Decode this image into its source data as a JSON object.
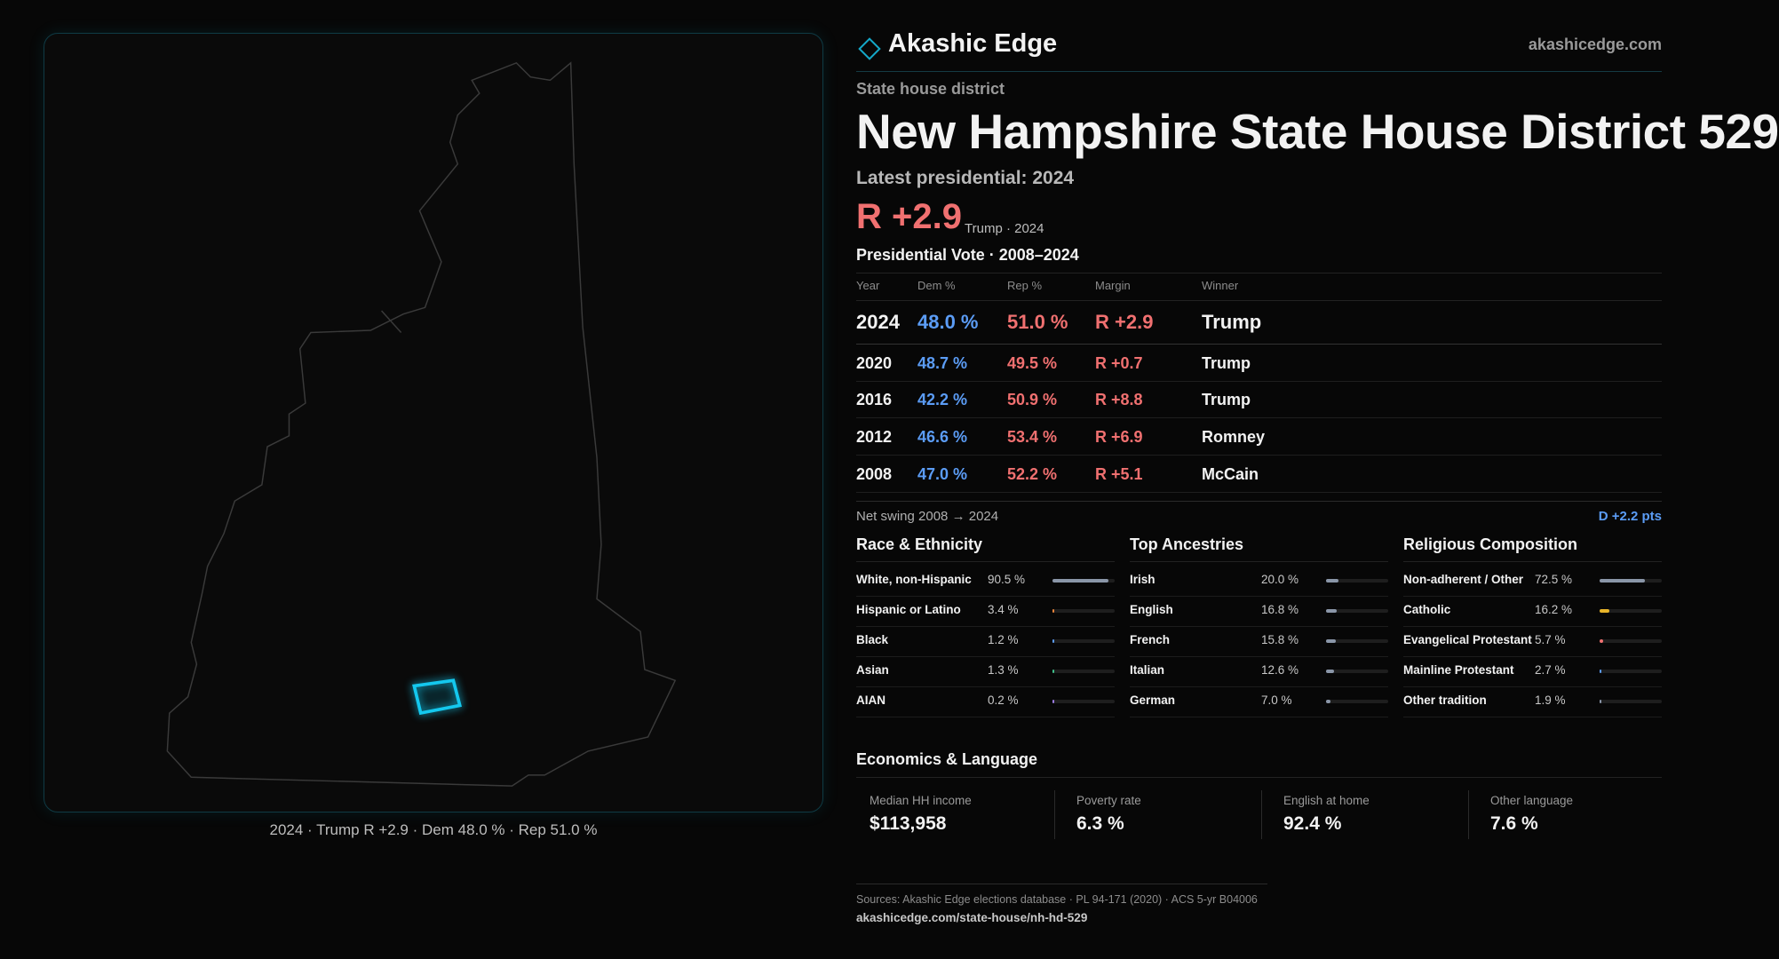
{
  "header": {
    "brand": "Akashic Edge",
    "site": "akashicedge.com"
  },
  "district": {
    "kind": "State house district",
    "title": "New Hampshire State House District 529",
    "latest_label": "Latest presidential: 2024",
    "margin": "R +2.9",
    "margin_note": "Trump · 2024"
  },
  "map": {
    "caption": "2024 · Trump R +2.9 · Dem 48.0 % · Rep 51.0 %"
  },
  "votes": {
    "title": "Presidential Vote · 2008–2024",
    "columns": [
      "Year",
      "Dem %",
      "Rep %",
      "Margin",
      "Winner"
    ],
    "rows": [
      [
        "2024",
        "48.0 %",
        "51.0 %",
        "R +2.9",
        "Trump"
      ],
      [
        "2020",
        "48.7 %",
        "49.5 %",
        "R +0.7",
        "Trump"
      ],
      [
        "2016",
        "42.2 %",
        "50.9 %",
        "R +8.8",
        "Trump"
      ],
      [
        "2012",
        "46.6 %",
        "53.4 %",
        "R +6.9",
        "Romney"
      ],
      [
        "2008",
        "47.0 %",
        "52.2 %",
        "R +5.1",
        "McCain"
      ]
    ]
  },
  "swing": {
    "label": "Net swing 2008 → 2024",
    "value": "D +2.2 pts"
  },
  "race": {
    "title": "Race & Ethnicity",
    "xlim": [
      0,
      100
    ],
    "rows": [
      {
        "name": "White, non-Hispanic",
        "share": {
          "value": 90.5,
          "label": "90.5 %"
        },
        "color": "#8a96a8"
      },
      {
        "name": "Hispanic or Latino",
        "share": {
          "value": 3.4,
          "label": "3.4 %"
        },
        "color": "#e8843a"
      },
      {
        "name": "Black",
        "share": {
          "value": 1.2,
          "label": "1.2 %"
        },
        "color": "#5b9cf5"
      },
      {
        "name": "Asian",
        "share": {
          "value": 1.3,
          "label": "1.3 %"
        },
        "color": "#3fbf8a"
      },
      {
        "name": "AIAN",
        "share": {
          "value": 0.2,
          "label": "0.2 %"
        },
        "color": "#9a7be0"
      }
    ]
  },
  "ancestry": {
    "title": "Top Ancestries",
    "xlim": [
      0,
      100
    ],
    "rows": [
      {
        "name": "Irish",
        "share": {
          "value": 20.0,
          "label": "20.0 %"
        },
        "color": "#8a96a8"
      },
      {
        "name": "English",
        "share": {
          "value": 16.8,
          "label": "16.8 %"
        },
        "color": "#8a96a8"
      },
      {
        "name": "French",
        "share": {
          "value": 15.8,
          "label": "15.8 %"
        },
        "color": "#8a96a8"
      },
      {
        "name": "Italian",
        "share": {
          "value": 12.6,
          "label": "12.6 %"
        },
        "color": "#8a96a8"
      },
      {
        "name": "German",
        "share": {
          "value": 7.0,
          "label": "7.0 %"
        },
        "color": "#8a96a8"
      }
    ]
  },
  "religion": {
    "title": "Religious Composition",
    "xlim": [
      0,
      100
    ],
    "rows": [
      {
        "name": "Non-adherent / Other",
        "share": {
          "value": 72.5,
          "label": "72.5 %"
        },
        "color": "#8a96a8"
      },
      {
        "name": "Catholic",
        "share": {
          "value": 16.2,
          "label": "16.2 %"
        },
        "color": "#e8b52a"
      },
      {
        "name": "Evangelical Protestant",
        "share": {
          "value": 5.7,
          "label": "5.7 %"
        },
        "color": "#f07070"
      },
      {
        "name": "Mainline Protestant",
        "share": {
          "value": 2.7,
          "label": "2.7 %"
        },
        "color": "#5b9cf5"
      },
      {
        "name": "Other tradition",
        "share": {
          "value": 1.9,
          "label": "1.9 %"
        },
        "color": "#8a96a8"
      }
    ]
  },
  "economics": {
    "title": "Economics & Language",
    "cards": [
      {
        "label": "Median HH income",
        "value": "$113,958"
      },
      {
        "label": "Poverty rate",
        "value": "6.3 %"
      },
      {
        "label": "English at home",
        "value": "92.4 %"
      },
      {
        "label": "Other language",
        "value": "7.6 %"
      }
    ]
  },
  "footer": {
    "sources": "Sources: Akashic Edge elections database · PL 94-171 (2020) · ACS 5-yr B04006",
    "url": "akashicedge.com/state-house/nh-hd-529"
  }
}
